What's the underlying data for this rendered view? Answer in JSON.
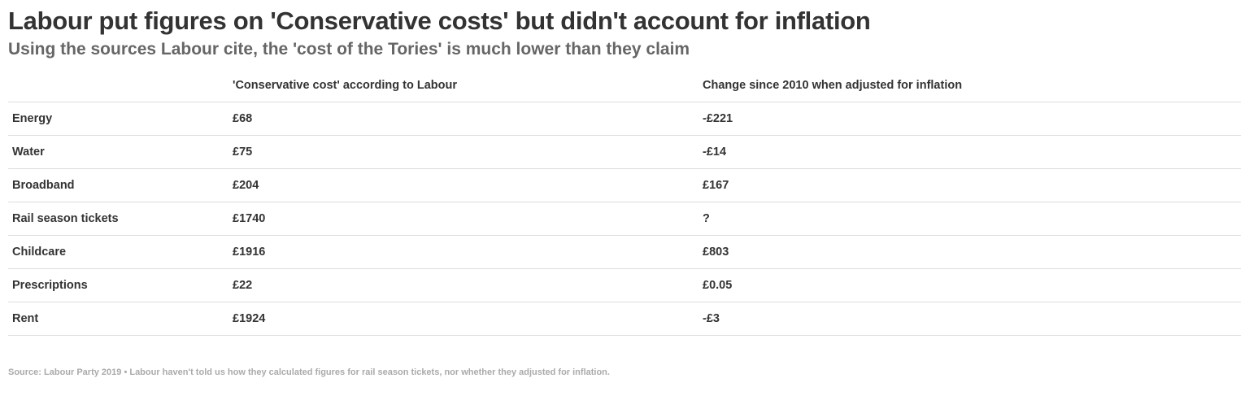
{
  "chart_data": {
    "type": "table",
    "title": "Labour put figures on 'Conservative costs' but didn't account for inflation",
    "subtitle": "Using the sources Labour cite, the 'cost of the Tories' is much lower than they claim",
    "columns": [
      "",
      "'Conservative cost' according to Labour",
      "Change since 2010 when adjusted for inflation"
    ],
    "rows": [
      {
        "label": "Energy",
        "cost": "£68",
        "change": "-£221"
      },
      {
        "label": "Water",
        "cost": "£75",
        "change": "-£14"
      },
      {
        "label": "Broadband",
        "cost": "£204",
        "change": "£167"
      },
      {
        "label": "Rail season tickets",
        "cost": "£1740",
        "change": "?"
      },
      {
        "label": "Childcare",
        "cost": "£1916",
        "change": "£803"
      },
      {
        "label": "Prescriptions",
        "cost": "£22",
        "change": "£0.05"
      },
      {
        "label": "Rent",
        "cost": "£1924",
        "change": "-£3"
      }
    ],
    "footer": "Source: Labour Party 2019 • Labour haven't told us how they calculated figures for rail season tickets, nor whether they adjusted for inflation."
  }
}
